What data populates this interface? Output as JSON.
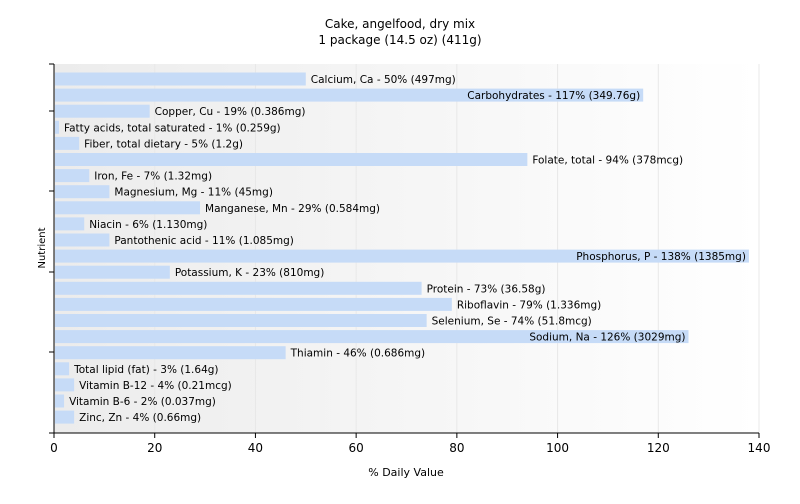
{
  "chart_data": {
    "type": "bar",
    "orientation": "horizontal",
    "title": "Cake, angelfood, dry mix",
    "subtitle": "1 package (14.5 oz) (411g)",
    "xlabel": "% Daily Value",
    "ylabel": "Nutrient",
    "xlim": [
      0,
      140
    ],
    "xticks": [
      "0",
      "20",
      "40",
      "60",
      "80",
      "100",
      "120",
      "140"
    ],
    "grid": true,
    "colors": {
      "bar": "#c6dbf7",
      "bar_edge": "#ffffff",
      "axis": "#000000",
      "grid": "#e8e8e8",
      "text": "#000000"
    },
    "categories": [
      "Calcium, Ca",
      "Carbohydrates",
      "Copper, Cu",
      "Fatty acids, total saturated",
      "Fiber, total dietary",
      "Folate, total",
      "Iron, Fe",
      "Magnesium, Mg",
      "Manganese, Mn",
      "Niacin",
      "Pantothenic acid",
      "Phosphorus, P",
      "Potassium, K",
      "Protein",
      "Riboflavin",
      "Selenium, Se",
      "Sodium, Na",
      "Thiamin",
      "Total lipid (fat)",
      "Vitamin B-12",
      "Vitamin B-6",
      "Zinc, Zn"
    ],
    "values": [
      50,
      117,
      19,
      1,
      5,
      94,
      7,
      11,
      29,
      6,
      11,
      138,
      23,
      73,
      79,
      74,
      126,
      46,
      3,
      4,
      2,
      4
    ],
    "labels": [
      "Calcium, Ca - 50% (497mg)",
      "Carbohydrates - 117% (349.76g)",
      "Copper, Cu - 19% (0.386mg)",
      "Fatty acids, total saturated - 1% (0.259g)",
      "Fiber, total dietary - 5% (1.2g)",
      "Folate, total - 94% (378mcg)",
      "Iron, Fe - 7% (1.32mg)",
      "Magnesium, Mg - 11% (45mg)",
      "Manganese, Mn - 29% (0.584mg)",
      "Niacin - 6% (1.130mg)",
      "Pantothenic acid - 11% (1.085mg)",
      "Phosphorus, P - 138% (1385mg)",
      "Potassium, K - 23% (810mg)",
      "Protein - 73% (36.58g)",
      "Riboflavin - 79% (1.336mg)",
      "Selenium, Se - 74% (51.8mcg)",
      "Sodium, Na - 126% (3029mg)",
      "Thiamin - 46% (0.686mg)",
      "Total lipid (fat) - 3% (1.64g)",
      "Vitamin B-12 - 4% (0.21mcg)",
      "Vitamin B-6 - 2% (0.037mg)",
      "Zinc, Zn - 4% (0.66mg)"
    ]
  }
}
